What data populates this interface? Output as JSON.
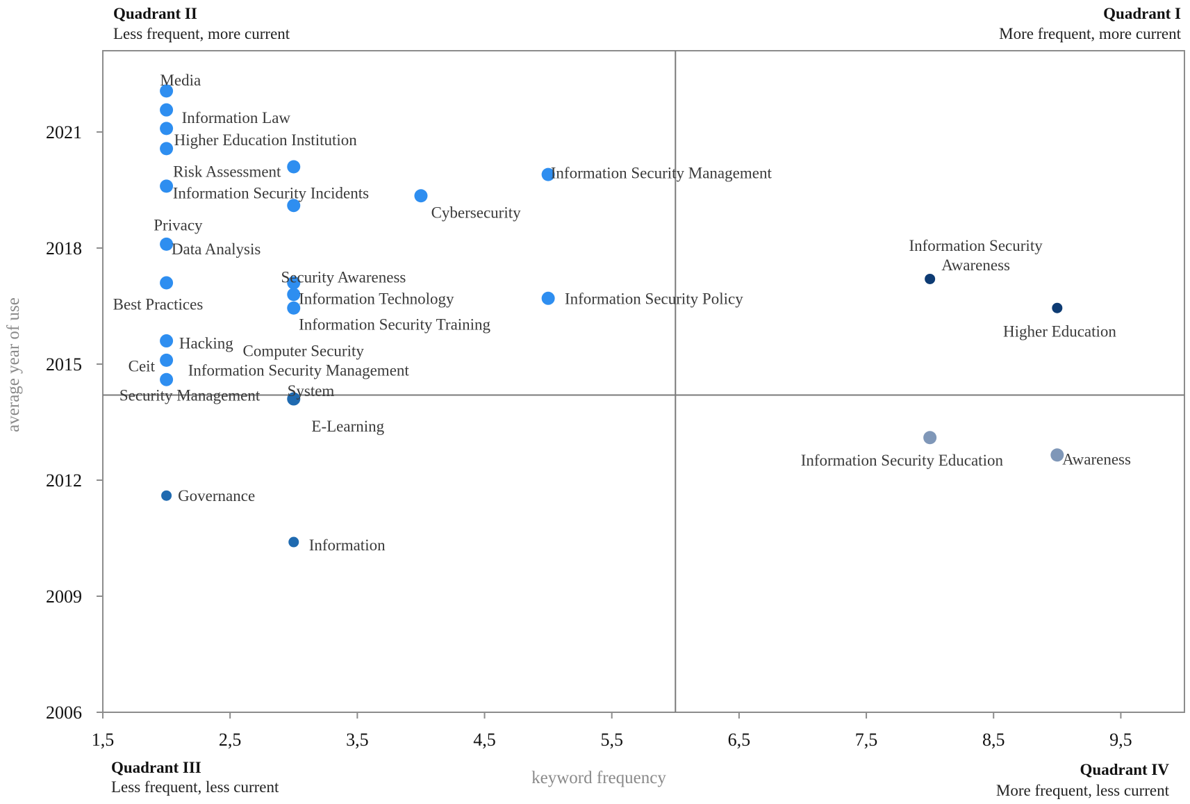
{
  "chart_data": {
    "type": "scatter",
    "title": "",
    "xlabel": "keyword frequency",
    "ylabel": "average year of use",
    "xlim": [
      1.5,
      10
    ],
    "ylim": [
      2006,
      2023.1
    ],
    "x_ticks": [
      "1,5",
      "2,5",
      "3,5",
      "4,5",
      "5,5",
      "6,5",
      "7,5",
      "8,5",
      "9,5"
    ],
    "x_tick_values": [
      1.5,
      2.5,
      3.5,
      4.5,
      5.5,
      6.5,
      7.5,
      8.5,
      9.5
    ],
    "y_ticks": [
      "2006",
      "2009",
      "2012",
      "2015",
      "2018",
      "2021"
    ],
    "y_tick_values": [
      2006,
      2009,
      2012,
      2015,
      2018,
      2021
    ],
    "divider_x": 6.0,
    "divider_y": 2014.2,
    "grid": false,
    "colors": {
      "light": "#2e8ef0",
      "medium": "#1f6ab0",
      "dark": "#0d3b73",
      "muted": "#7f97b8"
    },
    "quadrants": [
      {
        "id": "q2",
        "title": "Quadrant II",
        "subtitle": "Less frequent, more current"
      },
      {
        "id": "q1",
        "title": "Quadrant I",
        "subtitle": "More frequent, more current"
      },
      {
        "id": "q3",
        "title": "Quadrant III",
        "subtitle": "Less frequent, less current"
      },
      {
        "id": "q4",
        "title": "Quadrant IV",
        "subtitle": "More frequent, less current"
      }
    ],
    "points": [
      {
        "x": 2,
        "y": 2022.06,
        "color": "light",
        "size": "large"
      },
      {
        "x": 2,
        "y": 2021.57,
        "color": "light",
        "size": "large"
      },
      {
        "x": 2,
        "y": 2021.09,
        "color": "light",
        "size": "large"
      },
      {
        "x": 2,
        "y": 2020.57,
        "color": "light",
        "size": "large"
      },
      {
        "x": 2,
        "y": 2019.6,
        "color": "light",
        "size": "large"
      },
      {
        "x": 2,
        "y": 2018.1,
        "color": "light",
        "size": "large"
      },
      {
        "x": 2,
        "y": 2017.1,
        "color": "light",
        "size": "large"
      },
      {
        "x": 2,
        "y": 2015.6,
        "color": "light",
        "size": "large"
      },
      {
        "x": 2,
        "y": 2015.1,
        "color": "light",
        "size": "large"
      },
      {
        "x": 2,
        "y": 2014.6,
        "color": "light",
        "size": "large"
      },
      {
        "x": 3,
        "y": 2020.1,
        "color": "light",
        "size": "large"
      },
      {
        "x": 3,
        "y": 2019.1,
        "color": "light",
        "size": "large"
      },
      {
        "x": 3,
        "y": 2017.1,
        "color": "light",
        "size": "large"
      },
      {
        "x": 3,
        "y": 2016.8,
        "color": "light",
        "size": "large"
      },
      {
        "x": 3,
        "y": 2016.45,
        "color": "light",
        "size": "large"
      },
      {
        "x": 4,
        "y": 2019.35,
        "color": "light",
        "size": "large"
      },
      {
        "x": 5,
        "y": 2019.9,
        "color": "light",
        "size": "large"
      },
      {
        "x": 5,
        "y": 2016.7,
        "color": "light",
        "size": "large"
      },
      {
        "x": 3,
        "y": 2014.1,
        "color": "medium",
        "size": "large"
      },
      {
        "x": 2,
        "y": 2011.6,
        "color": "medium",
        "size": "small"
      },
      {
        "x": 3,
        "y": 2010.4,
        "color": "medium",
        "size": "small"
      },
      {
        "x": 8,
        "y": 2017.2,
        "color": "dark",
        "size": "small"
      },
      {
        "x": 9,
        "y": 2016.45,
        "color": "dark",
        "size": "small"
      },
      {
        "x": 8,
        "y": 2013.1,
        "color": "muted",
        "size": "large"
      },
      {
        "x": 9,
        "y": 2012.65,
        "color": "muted",
        "size": "large"
      }
    ],
    "labels": [
      {
        "text": "Media",
        "x": 1.95,
        "y": 2022.35,
        "anchor": "start"
      },
      {
        "text": "Information Law",
        "x": 2.12,
        "y": 2021.38,
        "anchor": "start"
      },
      {
        "text": "Higher Education Institution",
        "x": 2.06,
        "y": 2020.8,
        "anchor": "start"
      },
      {
        "text": "Risk Assessment",
        "x": 2.9,
        "y": 2019.98,
        "anchor": "end"
      },
      {
        "text": "Information Security Incidents",
        "x": 2.05,
        "y": 2019.43,
        "anchor": "start"
      },
      {
        "text": "Cybersecurity",
        "x": 4.08,
        "y": 2018.92,
        "anchor": "start"
      },
      {
        "text": "Information Security Management",
        "x": 5.02,
        "y": 2019.95,
        "anchor": "start"
      },
      {
        "text": "Privacy",
        "x": 1.9,
        "y": 2018.6,
        "anchor": "start"
      },
      {
        "text": "Data Analysis",
        "x": 2.04,
        "y": 2017.98,
        "anchor": "start"
      },
      {
        "text": "Security Awareness",
        "x": 2.9,
        "y": 2017.25,
        "anchor": "start"
      },
      {
        "text": "Information Technology",
        "x": 3.04,
        "y": 2016.7,
        "anchor": "start"
      },
      {
        "text": "Information Security Training",
        "x": 3.04,
        "y": 2016.03,
        "anchor": "start"
      },
      {
        "text": "Information Security Policy",
        "x": 5.13,
        "y": 2016.7,
        "anchor": "start"
      },
      {
        "text": "Best Practices",
        "x": 1.58,
        "y": 2016.55,
        "anchor": "start"
      },
      {
        "text": "Hacking",
        "x": 2.1,
        "y": 2015.55,
        "anchor": "start"
      },
      {
        "text": "Computer Security",
        "x": 2.6,
        "y": 2015.35,
        "anchor": "start"
      },
      {
        "text": "Ceit",
        "x": 1.7,
        "y": 2014.95,
        "anchor": "start"
      },
      {
        "text": "Information Security Management",
        "x": 2.17,
        "y": 2014.85,
        "anchor": "start"
      },
      {
        "text": "System",
        "x": 2.95,
        "y": 2014.32,
        "anchor": "start"
      },
      {
        "text": "Security Management",
        "x": 1.63,
        "y": 2014.2,
        "anchor": "start"
      },
      {
        "text": "E-Learning",
        "x": 3.14,
        "y": 2013.4,
        "anchor": "start"
      },
      {
        "text": "Governance",
        "x": 2.09,
        "y": 2011.6,
        "anchor": "start"
      },
      {
        "text": "Information",
        "x": 3.12,
        "y": 2010.33,
        "anchor": "start"
      },
      {
        "text": "Information Security",
        "x": 8.36,
        "y": 2018.07,
        "anchor": "middle"
      },
      {
        "text": "Awareness",
        "x": 8.36,
        "y": 2017.57,
        "anchor": "middle"
      },
      {
        "text": "Higher Education",
        "x": 9.02,
        "y": 2015.85,
        "anchor": "middle"
      },
      {
        "text": "Information Security Education",
        "x": 7.78,
        "y": 2012.52,
        "anchor": "middle"
      },
      {
        "text": "Awareness",
        "x": 9.04,
        "y": 2012.55,
        "anchor": "start"
      }
    ]
  }
}
